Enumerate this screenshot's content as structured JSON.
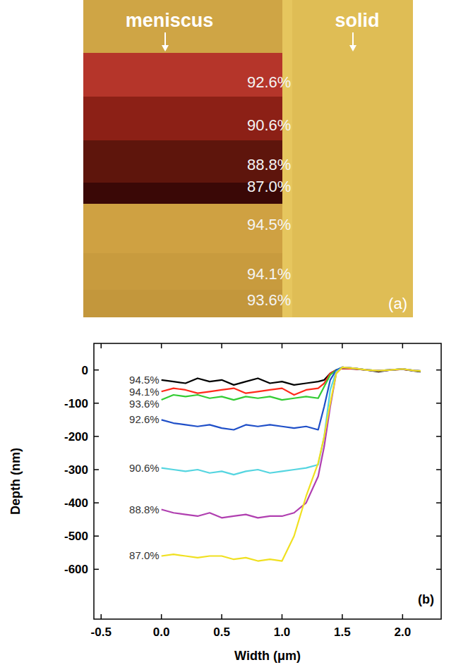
{
  "image_panel": {
    "panel_label": "(a)",
    "regions": [
      "meniscus",
      "solid"
    ],
    "labels": [
      "92.6%",
      "90.6%",
      "88.8%",
      "87.0%",
      "94.5%",
      "94.1%",
      "93.6%"
    ]
  },
  "chart_data": {
    "type": "line",
    "panel_label": "(b)",
    "x_label": "Width (μm)",
    "y_label": "Depth (nm)",
    "x": [
      0,
      0.1,
      0.2,
      0.3,
      0.4,
      0.5,
      0.6,
      0.7,
      0.8,
      0.9,
      1.0,
      1.1,
      1.2,
      1.3,
      1.35,
      1.4,
      1.45,
      1.5,
      1.6,
      1.7,
      1.8,
      1.9,
      2.0,
      2.1,
      2.15
    ],
    "xlim": [
      -0.56,
      2.32
    ],
    "xticks": [
      -0.5,
      {
        "value": 0,
        "label": "0.0"
      },
      0.5,
      {
        "value": 1,
        "label": "1.0"
      },
      1.5,
      {
        "value": 2,
        "label": "2.0"
      }
    ],
    "ylim": [
      -750,
      80
    ],
    "yticks": [
      -600,
      -500,
      -400,
      -300,
      -200,
      -100,
      0
    ],
    "series": [
      {
        "name": "94.5%",
        "color": "#000000",
        "values": [
          -30,
          -35,
          -40,
          -25,
          -35,
          -30,
          -45,
          -35,
          -25,
          -40,
          -35,
          -45,
          -40,
          -35,
          -30,
          -10,
          0,
          5,
          3,
          0,
          -5,
          0,
          2,
          -3,
          -5
        ]
      },
      {
        "name": "94.1%",
        "color": "#ff2a1a",
        "values": [
          -65,
          -55,
          -60,
          -70,
          -65,
          -60,
          -55,
          -70,
          -65,
          -60,
          -55,
          -75,
          -60,
          -55,
          -40,
          -10,
          0,
          5,
          3,
          0,
          -3,
          0,
          2,
          -2,
          -3
        ]
      },
      {
        "name": "93.6%",
        "color": "#33cc33",
        "values": [
          -90,
          -75,
          -80,
          -75,
          -85,
          -80,
          -90,
          -80,
          -85,
          -80,
          -90,
          -85,
          -80,
          -85,
          -50,
          -15,
          0,
          8,
          5,
          0,
          -2,
          0,
          3,
          -2,
          -3
        ]
      },
      {
        "name": "92.6%",
        "color": "#1f4fc8",
        "values": [
          -150,
          -160,
          -165,
          -170,
          -165,
          -175,
          -180,
          -165,
          -170,
          -165,
          -170,
          -175,
          -170,
          -180,
          -110,
          -30,
          0,
          8,
          5,
          0,
          -2,
          0,
          3,
          -2,
          -3
        ]
      },
      {
        "name": "90.6%",
        "color": "#55d5e0",
        "values": [
          -295,
          -300,
          -305,
          -300,
          -310,
          -305,
          -315,
          -305,
          -300,
          -310,
          -305,
          -300,
          -295,
          -285,
          -200,
          -60,
          -5,
          8,
          5,
          0,
          -2,
          0,
          3,
          -2,
          -3
        ]
      },
      {
        "name": "88.8%",
        "color": "#b03fb0",
        "values": [
          -420,
          -430,
          -435,
          -440,
          -430,
          -445,
          -440,
          -435,
          -445,
          -440,
          -440,
          -430,
          -400,
          -320,
          -230,
          -110,
          -10,
          8,
          5,
          0,
          -2,
          0,
          3,
          -2,
          -3
        ]
      },
      {
        "name": "87.0%",
        "color": "#f0e020",
        "values": [
          -560,
          -555,
          -560,
          -565,
          -560,
          -560,
          -570,
          -565,
          -575,
          -570,
          -575,
          -500,
          -380,
          -280,
          -200,
          -100,
          -10,
          8,
          5,
          0,
          -2,
          0,
          3,
          -2,
          -3
        ]
      }
    ]
  }
}
